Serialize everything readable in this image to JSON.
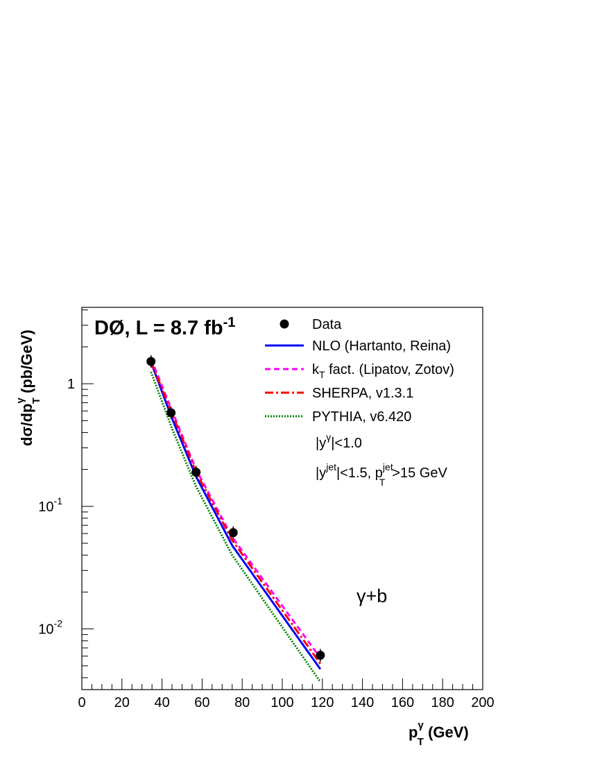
{
  "chart_data": {
    "type": "line",
    "title": "DØ, L = 8.7 fb",
    "title_sup": "-1",
    "xlabel": {
      "main": "p",
      "sup": "γ",
      "sub": "T",
      "rest": " (GeV)"
    },
    "ylabel": {
      "main": "dσ/dp",
      "sup": "γ",
      "sub": "T",
      "rest": " (pb/GeV)"
    },
    "xlim": [
      0,
      200
    ],
    "ylim": [
      0.0032,
      4.2
    ],
    "yscale": "log",
    "x_tick_labels": [
      "0",
      "20",
      "40",
      "60",
      "80",
      "100",
      "120",
      "140",
      "160",
      "180",
      "200"
    ],
    "y_tick_labels": [
      {
        "value": 1,
        "base": "1",
        "exp": ""
      },
      {
        "value": 0.1,
        "base": "10",
        "exp": "-1"
      },
      {
        "value": 0.01,
        "base": "10",
        "exp": "-2"
      }
    ],
    "grid": false,
    "legend_position": "top-right",
    "data_points": {
      "name": "Data",
      "x": [
        34.5,
        44.5,
        57.0,
        75.5,
        119.0
      ],
      "y": [
        1.52,
        0.58,
        0.19,
        0.061,
        0.0061
      ]
    },
    "series": [
      {
        "name": "NLO (Hartanto, Reina)",
        "color": "#0000ff",
        "style": "solid",
        "x": [
          34.5,
          45,
          57,
          75,
          119
        ],
        "y": [
          1.5,
          0.52,
          0.175,
          0.048,
          0.0047
        ]
      },
      {
        "name": "kT fact. (Lipatov, Zotov)",
        "color": "#ff00ff",
        "style": "dashed",
        "x": [
          34.5,
          45,
          57,
          75,
          119
        ],
        "y": [
          1.6,
          0.6,
          0.2,
          0.056,
          0.0058
        ]
      },
      {
        "name": "SHERPA, v1.3.1",
        "color": "#ff0000",
        "style": "dashdot",
        "x": [
          34.5,
          45,
          57,
          75,
          119
        ],
        "y": [
          1.52,
          0.57,
          0.19,
          0.053,
          0.0052
        ]
      },
      {
        "name": "PYTHIA, v6.420",
        "color": "#008000",
        "style": "dotted",
        "x": [
          34.5,
          45,
          57,
          75,
          119
        ],
        "y": [
          1.25,
          0.43,
          0.145,
          0.04,
          0.0037
        ]
      }
    ],
    "legend": {
      "data_label": "Data",
      "nlo_label": "NLO (Hartanto, Reina)",
      "kt_k": "k",
      "kt_sub": "T",
      "kt_rest": " fact. (Lipatov, Zotov)",
      "sherpa_label": "SHERPA, v1.3.1",
      "pythia_label": "PYTHIA, v6.420"
    },
    "annotations": {
      "cut1_a": "|y",
      "cut1_sup": "γ",
      "cut1_b": "|<1.0",
      "cut2_a": "|y",
      "cut2_sup": "jet",
      "cut2_b": "|<1.5, p",
      "cut2_sup2": "jet",
      "cut2_sub": "T",
      "cut2_c": ">15 GeV",
      "process": "γ+b"
    }
  }
}
